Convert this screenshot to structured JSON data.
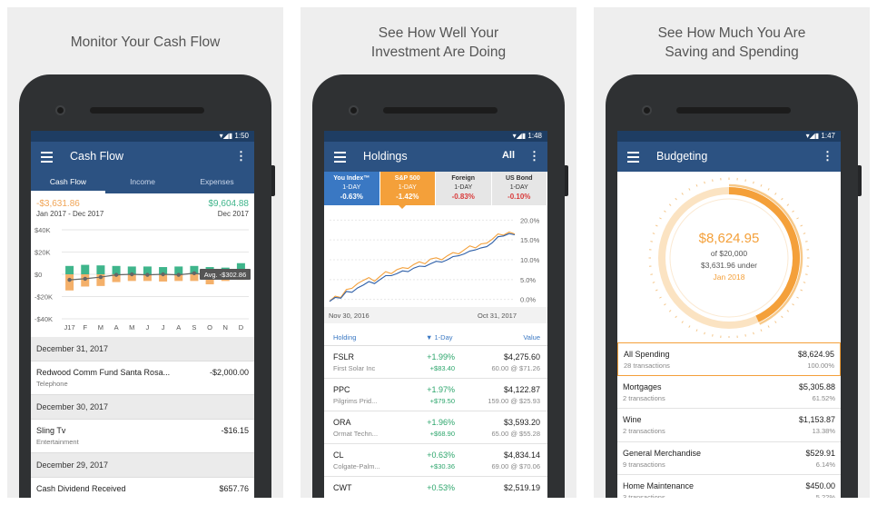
{
  "panels": [
    {
      "caption": [
        "Monitor Your Cash Flow"
      ]
    },
    {
      "caption": [
        "See How Well Your",
        "Investment Are Doing"
      ]
    },
    {
      "caption": [
        "See How Much You Are",
        "Saving and Spending"
      ]
    }
  ],
  "cashflow": {
    "time": "1:50",
    "title": "Cash Flow",
    "tabs": [
      "Cash Flow",
      "Income",
      "Expenses"
    ],
    "net_negative": "-$3,631.86",
    "net_positive": "$9,604.88",
    "range_start": "Jan 2017 - Dec 2017",
    "range_end": "Dec 2017",
    "avg_label": "Avg. -$302.86",
    "chart_data": {
      "type": "bar",
      "categories": [
        "J17",
        "F",
        "M",
        "A",
        "M",
        "J",
        "J",
        "A",
        "S",
        "O",
        "N",
        "D"
      ],
      "series": [
        {
          "values": [
            7.5,
            8.5,
            8,
            7.5,
            7,
            7,
            6.5,
            7,
            7.5,
            6.5,
            6,
            10
          ]
        },
        {
          "values": [
            -14.5,
            -11,
            -10.5,
            -7,
            -6,
            -6,
            -6.5,
            -6,
            -6,
            -9,
            -6,
            -5
          ]
        },
        {
          "values": [
            -5,
            -4,
            -2.5,
            -0.5,
            0,
            -0.5,
            0,
            -0.5,
            1,
            -1,
            -1,
            -1
          ]
        }
      ],
      "y_ticks": [
        "$40K",
        "$20K",
        "$0",
        "-$20K",
        "-$40K"
      ],
      "ylim": [
        -40,
        40
      ],
      "colors": {
        "income": "#3fb58b",
        "expense": "#f4b06a",
        "net": "#666666"
      }
    },
    "sections": [
      {
        "date": "December 31, 2017",
        "rows": [
          {
            "name": "Redwood Comm Fund Santa Rosa...",
            "category": "Telephone",
            "amount": "-$2,000.00"
          }
        ]
      },
      {
        "date": "December 30, 2017",
        "rows": [
          {
            "name": "Sling Tv",
            "category": "Entertainment",
            "amount": "-$16.15"
          }
        ]
      },
      {
        "date": "December 29, 2017",
        "rows": [
          {
            "name": "Cash Dividend Received",
            "category": "",
            "amount": "$657.76"
          }
        ]
      }
    ]
  },
  "holdings": {
    "time": "1:48",
    "title": "Holdings",
    "filter": "All",
    "indexes": [
      {
        "name": "You Index™",
        "period": "1-DAY",
        "value": "-0.63%",
        "style": "blue"
      },
      {
        "name": "S&P 500",
        "period": "1-DAY",
        "value": "-1.42%",
        "style": "orange"
      },
      {
        "name": "Foreign",
        "period": "1-DAY",
        "value": "-0.83%",
        "style": "gray"
      },
      {
        "name": "US Bond",
        "period": "1-DAY",
        "value": "-0.10%",
        "style": "gray"
      }
    ],
    "chart_data": {
      "type": "line",
      "x_start": "Nov 30, 2016",
      "x_end": "Oct 31, 2017",
      "y_ticks": [
        "20.0%",
        "15.0%",
        "10.0%",
        "5.0%",
        "0.0%"
      ],
      "ylim": [
        -1,
        21
      ],
      "series": [
        {
          "values": [
            -0.5,
            0.8,
            0.5,
            2.5,
            2.8,
            4.0,
            4.8,
            5.5,
            4.6,
            5.8,
            7.0,
            6.5,
            7.5,
            8.0,
            7.8,
            8.8,
            9.5,
            9.0,
            10.2,
            10.5,
            10.0,
            11.0,
            11.8,
            11.5,
            12.5,
            13.5,
            13.0,
            14.0,
            14.2,
            15.2,
            16.5,
            16.2,
            17.0,
            16.5
          ]
        },
        {
          "values": [
            -0.5,
            0.5,
            0.3,
            2.0,
            1.8,
            2.9,
            3.6,
            4.5,
            4.0,
            5.0,
            6.0,
            6.0,
            6.5,
            7.2,
            7.0,
            7.9,
            8.4,
            8.3,
            9.0,
            9.6,
            9.4,
            10.0,
            10.8,
            11.0,
            11.5,
            12.2,
            12.5,
            13.0,
            13.3,
            14.3,
            15.8,
            16.0,
            16.6,
            16.3
          ]
        }
      ],
      "colors": [
        "#f4a03a",
        "#2e5fa8"
      ]
    },
    "columns": {
      "holding": "Holding",
      "day": "1-Day",
      "value": "Value"
    },
    "rows": [
      {
        "ticker": "FSLR",
        "name": "First Solar Inc",
        "pct": "+1.99%",
        "change": "+$83.40",
        "value": "$4,275.60",
        "detail": "60.00 @ $71.26"
      },
      {
        "ticker": "PPC",
        "name": "Pilgrims Prid...",
        "pct": "+1.97%",
        "change": "+$79.50",
        "value": "$4,122.87",
        "detail": "159.00 @ $25.93"
      },
      {
        "ticker": "ORA",
        "name": "Ormat Techn...",
        "pct": "+1.96%",
        "change": "+$68.90",
        "value": "$3,593.20",
        "detail": "65.00 @ $55.28"
      },
      {
        "ticker": "CL",
        "name": "Colgate-Palm...",
        "pct": "+0.63%",
        "change": "+$30.36",
        "value": "$4,834.14",
        "detail": "69.00 @ $70.06"
      },
      {
        "ticker": "CWT",
        "name": "",
        "pct": "+0.53%",
        "change": "",
        "value": "$2,519.19",
        "detail": ""
      }
    ]
  },
  "budgeting": {
    "time": "1:47",
    "title": "Budgeting",
    "spent": "$8,624.95",
    "of_label": "of $20,000",
    "under": "$3,631.96 under",
    "month": "Jan 2018",
    "chart_data": {
      "type": "pie",
      "values": [
        43.1
      ],
      "total": 100,
      "colors": {
        "spent": "#f4a03a",
        "track": "#fbe3c2",
        "outer": "#f7c98a"
      }
    },
    "rows": [
      {
        "name": "All Spending",
        "tx": "28 transactions",
        "amount": "$8,624.95",
        "pct": "100.00%",
        "selected": true
      },
      {
        "name": "Mortgages",
        "tx": "2 transactions",
        "amount": "$5,305.88",
        "pct": "61.52%"
      },
      {
        "name": "Wine",
        "tx": "2 transactions",
        "amount": "$1,153.87",
        "pct": "13.38%"
      },
      {
        "name": "General Merchandise",
        "tx": "9 transactions",
        "amount": "$529.91",
        "pct": "6.14%"
      },
      {
        "name": "Home Maintenance",
        "tx": "3 transactions",
        "amount": "$450.00",
        "pct": "5.22%"
      }
    ]
  }
}
